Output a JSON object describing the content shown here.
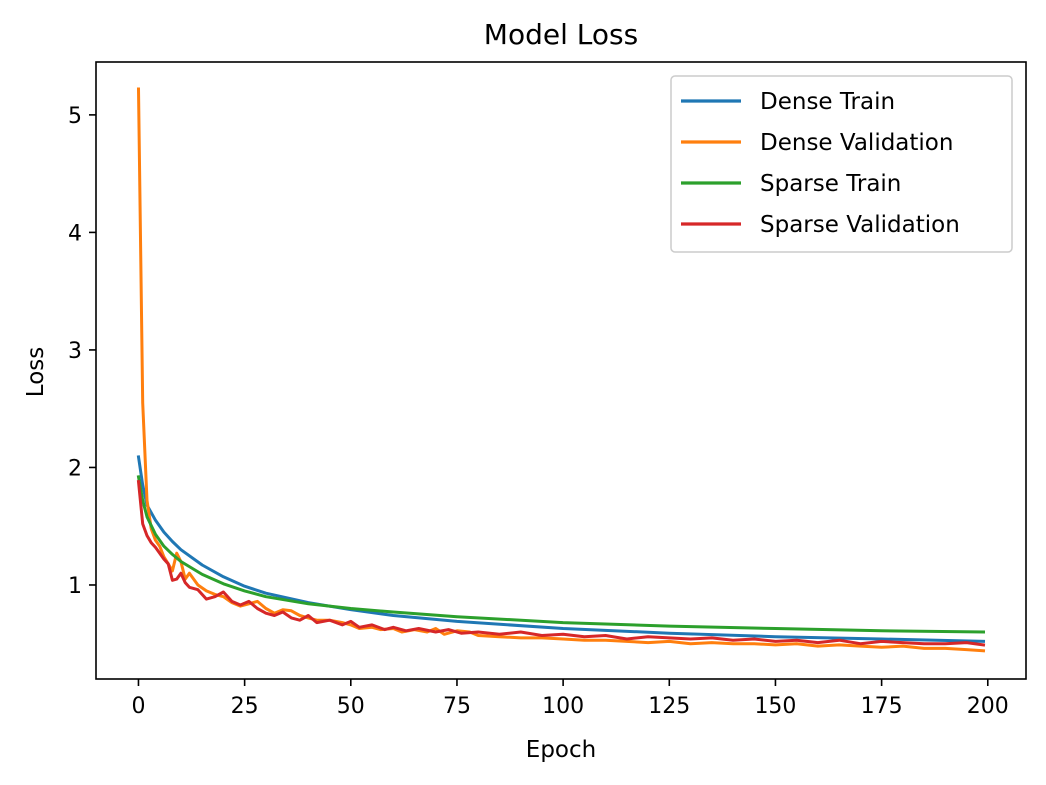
{
  "chart_data": {
    "type": "line",
    "title": "Model Loss",
    "xlabel": "Epoch",
    "ylabel": "Loss",
    "xlim": [
      -10,
      209
    ],
    "ylim": [
      0.2,
      5.45
    ],
    "xticks": [
      0,
      25,
      50,
      75,
      100,
      125,
      150,
      175,
      200
    ],
    "yticks": [
      1,
      2,
      3,
      4,
      5
    ],
    "grid": false,
    "legend_position": "top-right",
    "series": [
      {
        "name": "Dense Train",
        "color": "#1f77b4",
        "x": [
          0,
          1,
          2,
          4,
          6,
          8,
          10,
          15,
          20,
          25,
          30,
          40,
          50,
          60,
          75,
          100,
          125,
          150,
          175,
          199
        ],
        "y": [
          2.09,
          1.85,
          1.68,
          1.55,
          1.45,
          1.37,
          1.3,
          1.17,
          1.07,
          0.99,
          0.93,
          0.85,
          0.79,
          0.74,
          0.69,
          0.63,
          0.59,
          0.56,
          0.54,
          0.52
        ]
      },
      {
        "name": "Dense Validation",
        "color": "#ff7f0e",
        "x": [
          0,
          1,
          2,
          3,
          4,
          5,
          6,
          7,
          8,
          9,
          10,
          11,
          12,
          14,
          16,
          18,
          20,
          22,
          24,
          26,
          28,
          30,
          32,
          34,
          36,
          38,
          40,
          42,
          45,
          48,
          50,
          52,
          55,
          57,
          60,
          62,
          65,
          68,
          70,
          72,
          75,
          78,
          80,
          85,
          90,
          95,
          100,
          105,
          110,
          115,
          120,
          125,
          130,
          135,
          140,
          145,
          150,
          155,
          160,
          165,
          170,
          175,
          180,
          185,
          190,
          195,
          199
        ],
        "y": [
          5.22,
          2.55,
          1.72,
          1.48,
          1.38,
          1.33,
          1.24,
          1.18,
          1.12,
          1.27,
          1.2,
          1.05,
          1.1,
          1.0,
          0.95,
          0.92,
          0.9,
          0.85,
          0.82,
          0.84,
          0.86,
          0.8,
          0.76,
          0.79,
          0.78,
          0.74,
          0.72,
          0.7,
          0.7,
          0.68,
          0.66,
          0.63,
          0.64,
          0.62,
          0.63,
          0.6,
          0.62,
          0.6,
          0.63,
          0.58,
          0.61,
          0.6,
          0.57,
          0.56,
          0.55,
          0.55,
          0.54,
          0.53,
          0.53,
          0.52,
          0.51,
          0.52,
          0.5,
          0.51,
          0.5,
          0.5,
          0.49,
          0.5,
          0.48,
          0.49,
          0.48,
          0.47,
          0.48,
          0.46,
          0.46,
          0.45,
          0.44
        ]
      },
      {
        "name": "Sparse Train",
        "color": "#2ca02c",
        "x": [
          0,
          1,
          2,
          4,
          6,
          8,
          10,
          15,
          20,
          25,
          30,
          40,
          50,
          60,
          75,
          100,
          125,
          150,
          175,
          199
        ],
        "y": [
          1.92,
          1.72,
          1.58,
          1.43,
          1.33,
          1.26,
          1.2,
          1.09,
          1.01,
          0.95,
          0.9,
          0.84,
          0.8,
          0.77,
          0.73,
          0.68,
          0.65,
          0.63,
          0.61,
          0.6
        ]
      },
      {
        "name": "Sparse Validation",
        "color": "#d62728",
        "x": [
          0,
          1,
          2,
          3,
          4,
          5,
          6,
          7,
          8,
          9,
          10,
          11,
          12,
          14,
          16,
          18,
          20,
          22,
          24,
          26,
          28,
          30,
          32,
          34,
          36,
          38,
          40,
          42,
          45,
          48,
          50,
          52,
          55,
          58,
          60,
          63,
          66,
          70,
          73,
          76,
          80,
          85,
          90,
          95,
          100,
          105,
          110,
          115,
          120,
          125,
          130,
          135,
          140,
          145,
          150,
          155,
          160,
          165,
          170,
          175,
          180,
          185,
          190,
          195,
          199
        ],
        "y": [
          1.88,
          1.52,
          1.42,
          1.36,
          1.32,
          1.27,
          1.22,
          1.18,
          1.04,
          1.05,
          1.1,
          1.02,
          0.98,
          0.96,
          0.88,
          0.9,
          0.94,
          0.86,
          0.83,
          0.86,
          0.8,
          0.76,
          0.74,
          0.77,
          0.72,
          0.7,
          0.74,
          0.68,
          0.7,
          0.66,
          0.69,
          0.64,
          0.66,
          0.62,
          0.64,
          0.61,
          0.63,
          0.6,
          0.62,
          0.59,
          0.6,
          0.58,
          0.6,
          0.57,
          0.58,
          0.56,
          0.57,
          0.54,
          0.56,
          0.55,
          0.54,
          0.55,
          0.53,
          0.54,
          0.52,
          0.53,
          0.51,
          0.53,
          0.5,
          0.52,
          0.51,
          0.5,
          0.5,
          0.51,
          0.49
        ]
      }
    ]
  }
}
